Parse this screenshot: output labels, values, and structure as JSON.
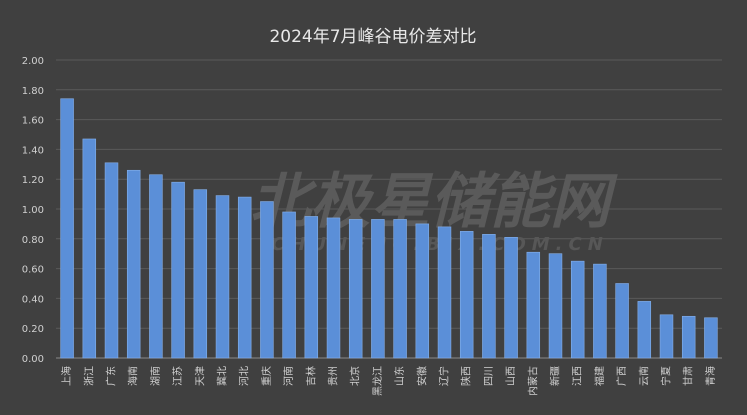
{
  "watermark": {
    "brand": "北极星储能网",
    "domain": "CHUNENG.BJX.COM.CN"
  },
  "chart_data": {
    "type": "bar",
    "title": "2024年7月峰谷电价差对比",
    "xlabel": "",
    "ylabel": "",
    "ylim": [
      0,
      2.0
    ],
    "yticks": [
      "0.00",
      "0.20",
      "0.40",
      "0.60",
      "0.80",
      "1.00",
      "1.20",
      "1.40",
      "1.60",
      "1.80",
      "2.00"
    ],
    "grid": true,
    "legend": "none",
    "bar_color": "#5b8fd8",
    "categories": [
      "上海",
      "浙江",
      "广东",
      "海南",
      "湖南",
      "江苏",
      "天津",
      "冀北",
      "河北",
      "重庆",
      "河南",
      "吉林",
      "贵州",
      "北京",
      "黑龙江",
      "山东",
      "安徽",
      "辽宁",
      "陕西",
      "四川",
      "山西",
      "内蒙古",
      "新疆",
      "江西",
      "福建",
      "广西",
      "云南",
      "宁夏",
      "甘肃",
      "青海"
    ],
    "values": [
      1.74,
      1.47,
      1.31,
      1.26,
      1.23,
      1.18,
      1.13,
      1.09,
      1.08,
      1.05,
      0.98,
      0.95,
      0.94,
      0.93,
      0.93,
      0.93,
      0.9,
      0.88,
      0.85,
      0.83,
      0.81,
      0.71,
      0.7,
      0.65,
      0.63,
      0.5,
      0.38,
      0.29,
      0.28,
      0.27
    ]
  }
}
